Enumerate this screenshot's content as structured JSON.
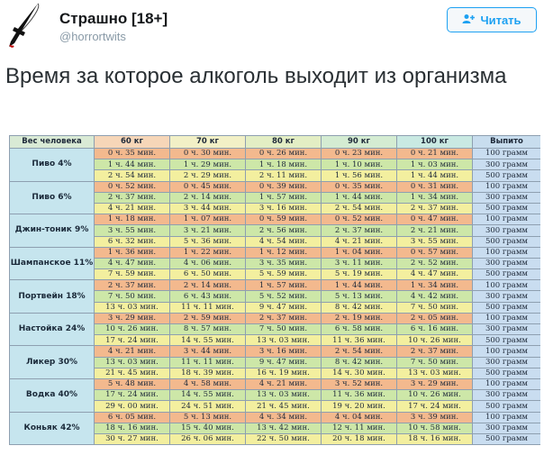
{
  "account": {
    "name": "Страшно [18+]",
    "handle": "@horrortwits",
    "avatar_icon": "knife-icon"
  },
  "follow_button": {
    "label": "Читать",
    "icon": "add-user-icon",
    "color": "#1da1f2"
  },
  "tweet": {
    "text": "Время за которое алкоголь выходит из организма"
  },
  "table": {
    "headers": {
      "drink": "Вес человека",
      "weights": [
        "60 кг",
        "70 кг",
        "80 кг",
        "90 кг",
        "100 кг"
      ],
      "amount": "Выпито"
    },
    "groups": [
      {
        "name": "Пиво 4%",
        "rows": [
          {
            "values": [
              "0 ч. 35 мин.",
              "0 ч. 30 мин.",
              "0 ч. 26 мин.",
              "0 ч. 23 мин.",
              "0 ч. 21 мин."
            ],
            "amount": "100 грамм"
          },
          {
            "values": [
              "1 ч. 44 мин.",
              "1 ч. 29 мин.",
              "1 ч. 18 мин.",
              "1 ч. 10 мин.",
              "1 ч. 03 мин."
            ],
            "amount": "300 грамм"
          },
          {
            "values": [
              "2 ч. 54 мин.",
              "2 ч. 29 мин.",
              "2 ч. 11 мин.",
              "1 ч. 56 мин.",
              "1 ч. 44 мин."
            ],
            "amount": "500 грамм"
          }
        ]
      },
      {
        "name": "Пиво 6%",
        "rows": [
          {
            "values": [
              "0 ч. 52 мин.",
              "0 ч. 45 мин.",
              "0 ч. 39 мин.",
              "0 ч. 35 мин.",
              "0 ч. 31 мин."
            ],
            "amount": "100 грамм"
          },
          {
            "values": [
              "2 ч. 37 мин.",
              "2 ч. 14 мин.",
              "1 ч. 57 мин.",
              "1 ч. 44 мин.",
              "1 ч. 34 мин."
            ],
            "amount": "300 грамм"
          },
          {
            "values": [
              "4 ч. 21 мин.",
              "3 ч. 44 мин.",
              "3 ч. 16 мин.",
              "2 ч. 54 мин.",
              "2 ч. 37 мин."
            ],
            "amount": "500 грамм"
          }
        ]
      },
      {
        "name": "Джин-тоник 9%",
        "rows": [
          {
            "values": [
              "1 ч. 18 мин.",
              "1 ч. 07 мин.",
              "0 ч. 59 мин.",
              "0 ч. 52 мин.",
              "0 ч. 47 мин."
            ],
            "amount": "100 грамм"
          },
          {
            "values": [
              "3 ч. 55 мин.",
              "3 ч. 21 мин.",
              "2 ч. 56 мин.",
              "2 ч. 37 мин.",
              "2 ч. 21 мин."
            ],
            "amount": "300 грамм"
          },
          {
            "values": [
              "6 ч. 32 мин.",
              "5 ч. 36 мин.",
              "4 ч. 54 мин.",
              "4 ч. 21 мин.",
              "3 ч. 55 мин."
            ],
            "amount": "500 грамм"
          }
        ]
      },
      {
        "name": "Шампанское 11%",
        "rows": [
          {
            "values": [
              "1 ч. 36 мин.",
              "1 ч. 22 мин.",
              "1 ч. 12 мин.",
              "1 ч. 04 мин.",
              "0 ч. 57 мин."
            ],
            "amount": "100 грамм"
          },
          {
            "values": [
              "4 ч. 47 мин.",
              "4 ч. 06 мин.",
              "3 ч. 35 мин.",
              "3 ч. 11 мин.",
              "2 ч. 52 мин."
            ],
            "amount": "300 грамм"
          },
          {
            "values": [
              "7 ч. 59 мин.",
              "6 ч. 50 мин.",
              "5 ч. 59 мин.",
              "5 ч. 19 мин.",
              "4 ч. 47 мин."
            ],
            "amount": "500 грамм"
          }
        ]
      },
      {
        "name": "Портвейн 18%",
        "rows": [
          {
            "values": [
              "2 ч. 37 мин.",
              "2 ч. 14 мин.",
              "1 ч. 57 мин.",
              "1 ч. 44 мин.",
              "1 ч. 34 мин."
            ],
            "amount": "100 грамм"
          },
          {
            "values": [
              "7 ч. 50 мин.",
              "6 ч. 43 мин.",
              "5 ч. 52 мин.",
              "5 ч. 13 мин.",
              "4 ч. 42 мин."
            ],
            "amount": "300 грамм"
          },
          {
            "values": [
              "13 ч. 03 мин.",
              "11 ч. 11 мин.",
              "9 ч. 47 мин.",
              "8 ч. 42 мин.",
              "7 ч. 50 мин."
            ],
            "amount": "500 грамм"
          }
        ]
      },
      {
        "name": "Настойка 24%",
        "rows": [
          {
            "values": [
              "3 ч. 29 мин.",
              "2 ч. 59 мин.",
              "2 ч. 37 мин.",
              "2 ч. 19 мин.",
              "2 ч. 05 мин."
            ],
            "amount": "100 грамм"
          },
          {
            "values": [
              "10 ч. 26 мин.",
              "8 ч. 57 мин.",
              "7 ч. 50 мин.",
              "6 ч. 58 мин.",
              "6 ч. 16 мин."
            ],
            "amount": "300 грамм"
          },
          {
            "values": [
              "17 ч. 24 мин.",
              "14 ч. 55 мин.",
              "13 ч. 03 мин.",
              "11 ч. 36 мин.",
              "10 ч. 26 мин."
            ],
            "amount": "500 грамм"
          }
        ]
      },
      {
        "name": "Ликер 30%",
        "rows": [
          {
            "values": [
              "4 ч. 21 мин.",
              "3 ч. 44 мин.",
              "3 ч. 16 мин.",
              "2 ч. 54 мин.",
              "2 ч. 37 мин."
            ],
            "amount": "100 грамм"
          },
          {
            "values": [
              "13 ч. 03 мин.",
              "11 ч. 11 мин.",
              "9 ч. 47 мин.",
              "8 ч. 42 мин.",
              "7 ч. 50 мин."
            ],
            "amount": "300 грамм"
          },
          {
            "values": [
              "21 ч. 45 мин.",
              "18 ч. 39 мин.",
              "16 ч. 19 мин.",
              "14 ч. 30 мин.",
              "13 ч. 03 мин."
            ],
            "amount": "500 грамм"
          }
        ]
      },
      {
        "name": "Водка 40%",
        "rows": [
          {
            "values": [
              "5 ч. 48 мин.",
              "4 ч. 58 мин.",
              "4 ч. 21 мин.",
              "3 ч. 52 мин.",
              "3 ч. 29 мин."
            ],
            "amount": "100 грамм"
          },
          {
            "values": [
              "17 ч. 24 мин.",
              "14 ч. 55 мин.",
              "13 ч. 03 мин.",
              "11 ч. 36 мин.",
              "10 ч. 26 мин."
            ],
            "amount": "300 грамм"
          },
          {
            "values": [
              "29 ч. 00 мин.",
              "24 ч. 51 мин.",
              "21 ч. 45 мин.",
              "19 ч. 20 мин.",
              "17 ч. 24 мин."
            ],
            "amount": "500 грамм"
          }
        ]
      },
      {
        "name": "Коньяк 42%",
        "rows": [
          {
            "values": [
              "6 ч. 05 мин.",
              "5 ч. 13 мин.",
              "4 ч. 34 мин.",
              "4 ч. 04 мин.",
              "3 ч. 39 мин."
            ],
            "amount": "100 грамм"
          },
          {
            "values": [
              "18 ч. 16 мин.",
              "15 ч. 40 мин.",
              "13 ч. 42 мин.",
              "12 ч. 11 мин.",
              "10 ч. 58 мин."
            ],
            "amount": "300 грамм"
          },
          {
            "values": [
              "30 ч. 27 мин.",
              "26 ч. 06 мин.",
              "22 ч. 50 мин.",
              "20 ч. 18 мин.",
              "18 ч. 16 мин."
            ],
            "amount": "500 грамм"
          }
        ]
      }
    ]
  }
}
